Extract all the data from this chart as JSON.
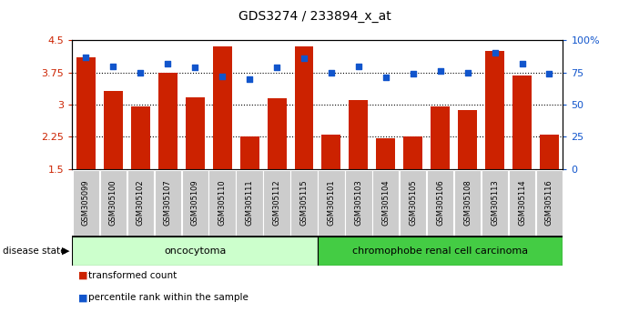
{
  "title": "GDS3274 / 233894_x_at",
  "samples": [
    "GSM305099",
    "GSM305100",
    "GSM305102",
    "GSM305107",
    "GSM305109",
    "GSM305110",
    "GSM305111",
    "GSM305112",
    "GSM305115",
    "GSM305101",
    "GSM305103",
    "GSM305104",
    "GSM305105",
    "GSM305106",
    "GSM305108",
    "GSM305113",
    "GSM305114",
    "GSM305116"
  ],
  "bar_values": [
    4.1,
    3.32,
    2.96,
    3.75,
    3.18,
    4.35,
    2.27,
    3.15,
    4.35,
    2.3,
    3.1,
    2.22,
    2.27,
    2.96,
    2.88,
    4.25,
    3.68,
    2.3
  ],
  "dot_values": [
    87,
    80,
    75,
    82,
    79,
    72,
    70,
    79,
    86,
    75,
    80,
    71,
    74,
    76,
    75,
    90,
    82,
    74
  ],
  "bar_color": "#cc2200",
  "dot_color": "#1155cc",
  "ylim_left": [
    1.5,
    4.5
  ],
  "ylim_right": [
    0,
    100
  ],
  "yticks_left": [
    1.5,
    2.25,
    3.0,
    3.75,
    4.5
  ],
  "yticks_right": [
    0,
    25,
    50,
    75,
    100
  ],
  "ytick_labels_left": [
    "1.5",
    "2.25",
    "3",
    "3.75",
    "4.5"
  ],
  "ytick_labels_right": [
    "0",
    "25",
    "50",
    "75",
    "100%"
  ],
  "hlines": [
    2.25,
    3.0,
    3.75
  ],
  "group1_label": "oncocytoma",
  "group2_label": "chromophobe renal cell carcinoma",
  "group1_count": 9,
  "group2_count": 9,
  "disease_state_label": "disease state",
  "legend1": "transformed count",
  "legend2": "percentile rank within the sample",
  "group1_color": "#ccffcc",
  "group2_color": "#44cc44",
  "xtick_bg": "#cccccc",
  "plot_bg": "#ffffff"
}
